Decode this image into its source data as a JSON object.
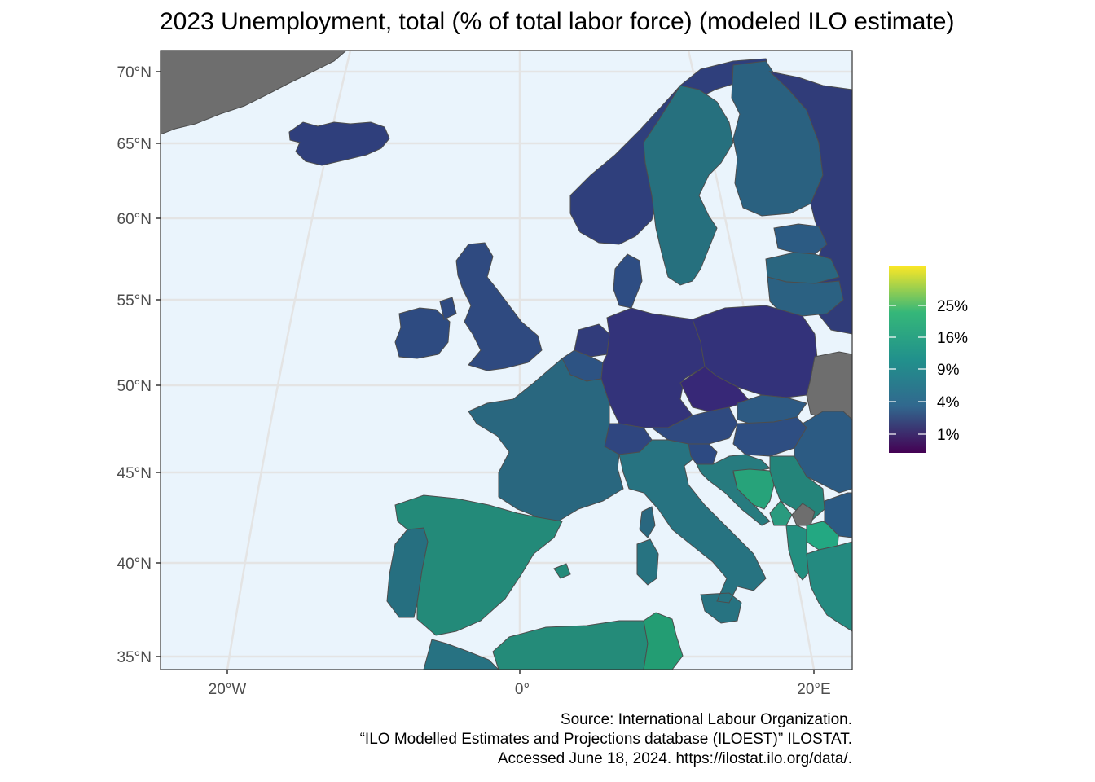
{
  "title": "2023 Unemployment, total (% of total labor force) (modeled ILO estimate)",
  "colors": {
    "ocean": "#eaf4fc",
    "no_data": "#6e6e6e",
    "border": "#4d4d4d",
    "grid": "#e4e4e4"
  },
  "axes": {
    "lat_ticks": [
      "70°N",
      "65°N",
      "60°N",
      "55°N",
      "50°N",
      "45°N",
      "40°N",
      "35°N"
    ],
    "lon_ticks": [
      "20°W",
      "0°",
      "20°E"
    ]
  },
  "legend": {
    "scale": "viridis",
    "ticks": [
      "25%",
      "16%",
      "9%",
      "4%",
      "1%"
    ],
    "gradient": [
      "#440154",
      "#31688e",
      "#21918c",
      "#35b779",
      "#fde725"
    ]
  },
  "regions": [
    {
      "name": "Greenland",
      "color": "#6e6e6e"
    },
    {
      "name": "Iceland",
      "color": "#2f3f7c"
    },
    {
      "name": "Norway",
      "color": "#2f3f7c"
    },
    {
      "name": "Sweden",
      "color": "#26707e"
    },
    {
      "name": "Finland",
      "color": "#2a6180"
    },
    {
      "name": "Russia",
      "color": "#303c79"
    },
    {
      "name": "Estonia",
      "color": "#2c5b83"
    },
    {
      "name": "Latvia",
      "color": "#2a6680"
    },
    {
      "name": "Lithuania",
      "color": "#2b6182"
    },
    {
      "name": "Denmark",
      "color": "#2e4d83"
    },
    {
      "name": "Ireland",
      "color": "#2e4b81"
    },
    {
      "name": "United Kingdom",
      "color": "#2f4a80"
    },
    {
      "name": "Netherlands",
      "color": "#313c7b"
    },
    {
      "name": "Belgium",
      "color": "#2d5383"
    },
    {
      "name": "Germany",
      "color": "#33337a"
    },
    {
      "name": "Poland",
      "color": "#33327a"
    },
    {
      "name": "Czechia",
      "color": "#372877"
    },
    {
      "name": "Belarus",
      "color": "#6e6e6e"
    },
    {
      "name": "Ukraine",
      "color": "#6e6e6e"
    },
    {
      "name": "Austria",
      "color": "#2f4a80"
    },
    {
      "name": "Switzerland",
      "color": "#2f4680"
    },
    {
      "name": "Slovakia",
      "color": "#2d5a83"
    },
    {
      "name": "Hungary",
      "color": "#2e4e82"
    },
    {
      "name": "Romania",
      "color": "#2c5b83"
    },
    {
      "name": "Moldova",
      "color": "#2e4a80"
    },
    {
      "name": "France",
      "color": "#29677f"
    },
    {
      "name": "Italy",
      "color": "#277381"
    },
    {
      "name": "Slovenia",
      "color": "#2d4a82"
    },
    {
      "name": "Croatia",
      "color": "#277b7f"
    },
    {
      "name": "Bosnia and Herzegovina",
      "color": "#27a37a"
    },
    {
      "name": "Serbia",
      "color": "#24847a"
    },
    {
      "name": "Montenegro",
      "color": "#2a9b7f"
    },
    {
      "name": "Kosovo",
      "color": "#6e6e6e"
    },
    {
      "name": "North Macedonia",
      "color": "#23a882"
    },
    {
      "name": "Albania",
      "color": "#238f80"
    },
    {
      "name": "Bulgaria",
      "color": "#2b5a84"
    },
    {
      "name": "Greece",
      "color": "#248a80"
    },
    {
      "name": "Spain",
      "color": "#238a79"
    },
    {
      "name": "Portugal",
      "color": "#266f80"
    },
    {
      "name": "Morocco",
      "color": "#277282"
    },
    {
      "name": "Algeria",
      "color": "#248b79"
    },
    {
      "name": "Tunisia",
      "color": "#239d73"
    }
  ],
  "caption": {
    "line1": "Source: International Labour Organization.",
    "line2": "“ILO Modelled Estimates and Projections database (ILOEST)” ILOSTAT.",
    "line3": "Accessed June 18, 2024. https://ilostat.ilo.org/data/."
  }
}
